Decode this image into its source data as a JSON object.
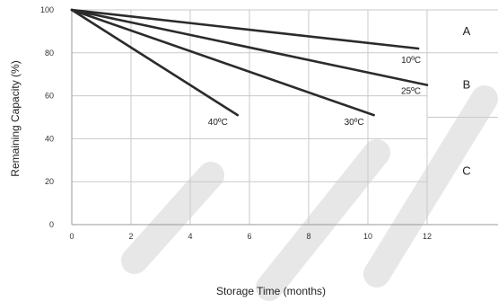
{
  "chart_data": {
    "type": "line",
    "xlabel": "Storage Time (months)",
    "ylabel": "Remaining Capacity (%)",
    "xlim": [
      0,
      12
    ],
    "ylim": [
      0,
      100
    ],
    "x_ticks": [
      0,
      2,
      4,
      6,
      8,
      10,
      12
    ],
    "y_ticks": [
      0,
      20,
      40,
      60,
      80,
      100
    ],
    "grid": true,
    "series": [
      {
        "name": "10ºC",
        "x": [
          0,
          11.7
        ],
        "y": [
          100,
          82
        ]
      },
      {
        "name": "25ºC",
        "x": [
          0,
          12
        ],
        "y": [
          100,
          65
        ]
      },
      {
        "name": "30ºC",
        "x": [
          0,
          10.2
        ],
        "y": [
          100,
          51
        ]
      },
      {
        "name": "40ºC",
        "x": [
          0,
          5.6
        ],
        "y": [
          100,
          51
        ]
      }
    ],
    "zones": [
      {
        "label": "A",
        "y_range": [
          80,
          100
        ]
      },
      {
        "label": "B",
        "y_range": [
          50,
          80
        ]
      },
      {
        "label": "C",
        "y_range": [
          0,
          50
        ]
      }
    ]
  }
}
